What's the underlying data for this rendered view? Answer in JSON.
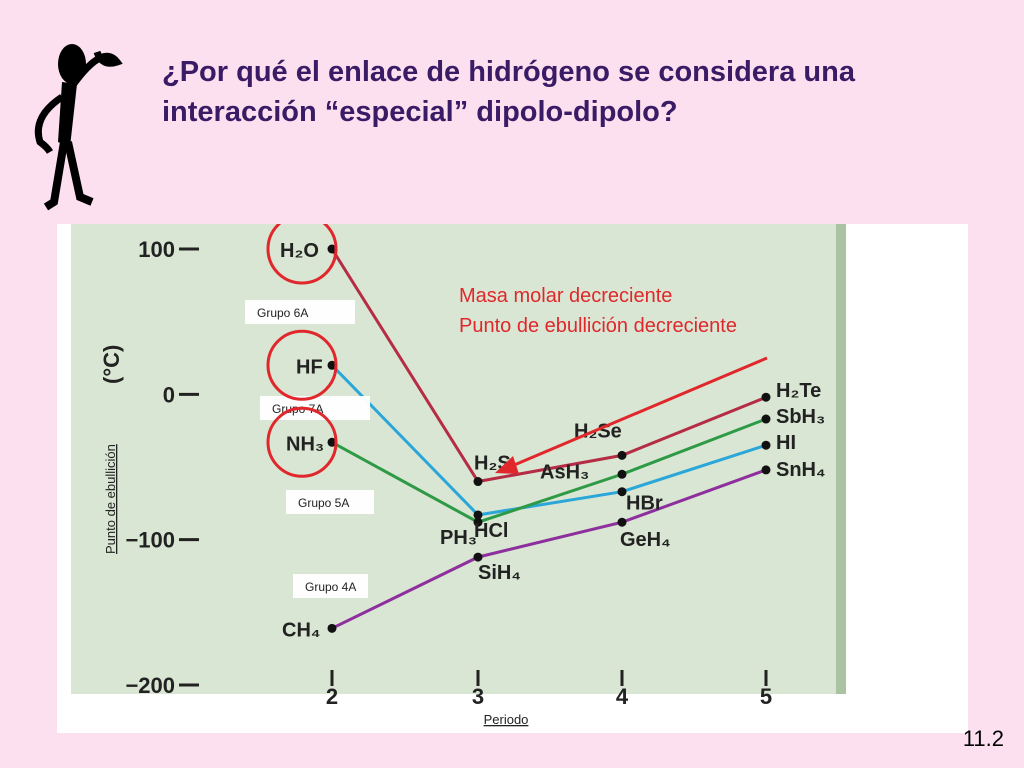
{
  "slide": {
    "title_line1": "¿Por qué el enlace de hidrógeno se considera una",
    "title_line2": "interacción “especial” dipolo-dipolo?",
    "slide_number": "11.2",
    "figure_icon": "thinking-stick-figure-icon"
  },
  "chart_data": {
    "type": "line",
    "xlabel": "Periodo",
    "ylabel": "Punto de ebullición",
    "unit_label": "(°C)",
    "x": [
      2,
      3,
      4,
      5
    ],
    "ylim": [
      -200,
      100
    ],
    "yticks": [
      100,
      0,
      -100,
      -200
    ],
    "grid": false,
    "background_color": "#d9e6d3",
    "series": [
      {
        "name": "Grupo 6A",
        "color": "#b52c45",
        "values": [
          100,
          -60,
          -42,
          -2
        ],
        "labels": [
          "H₂O",
          "H₂S",
          "H₂Se",
          "H₂Te"
        ]
      },
      {
        "name": "Grupo 7A",
        "color": "#2aa7d8",
        "values": [
          20,
          -83,
          -67,
          -35
        ],
        "labels": [
          "HF",
          "HCl",
          "HBr",
          "HI"
        ]
      },
      {
        "name": "Grupo 5A",
        "color": "#2e9a46",
        "values": [
          -33,
          -88,
          -55,
          -17
        ],
        "labels": [
          "NH₃",
          "PH₃",
          "AsH₃",
          "SbH₃"
        ]
      },
      {
        "name": "Grupo 4A",
        "color": "#8e2f9e",
        "values": [
          -161,
          -112,
          -88,
          -52
        ],
        "labels": [
          "CH₄",
          "SiH₄",
          "GeH₄",
          "SnH₄"
        ]
      }
    ],
    "annotation_line1": "Masa molar decreciente",
    "annotation_line2": "Punto de ebullición decreciente",
    "annotation_color": "#e0282c",
    "circle_color": "#e0282c"
  }
}
